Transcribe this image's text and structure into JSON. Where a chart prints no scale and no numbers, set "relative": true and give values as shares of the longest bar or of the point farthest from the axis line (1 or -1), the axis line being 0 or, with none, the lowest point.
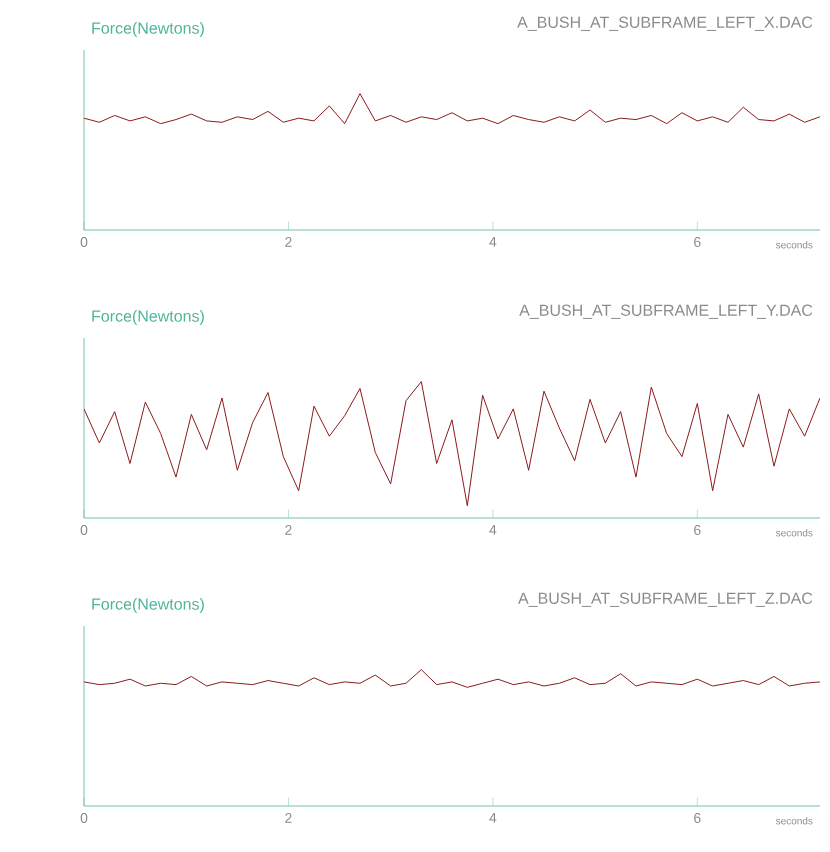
{
  "chart_data": [
    {
      "type": "line",
      "title": "A_BUSH_AT_SUBFRAME_LEFT_X.DAC",
      "ylabel": "Force(Newtons)",
      "xlabel": "seconds",
      "relative": true,
      "xlim": [
        0,
        7.2
      ],
      "xticks": [
        0,
        2,
        4,
        6
      ],
      "x": [
        0,
        0.15,
        0.3,
        0.45,
        0.6,
        0.75,
        0.9,
        1.05,
        1.2,
        1.35,
        1.5,
        1.65,
        1.8,
        1.95,
        2.1,
        2.25,
        2.4,
        2.55,
        2.7,
        2.85,
        3.0,
        3.15,
        3.3,
        3.45,
        3.6,
        3.75,
        3.9,
        4.05,
        4.2,
        4.35,
        4.5,
        4.65,
        4.8,
        4.95,
        5.1,
        5.25,
        5.4,
        5.55,
        5.7,
        5.85,
        6.0,
        6.15,
        6.3,
        6.45,
        6.6,
        6.75,
        6.9,
        7.05,
        7.2
      ],
      "series": [
        {
          "color": "#8b1a1a",
          "values": [
            0.82,
            0.79,
            0.84,
            0.8,
            0.83,
            0.78,
            0.81,
            0.85,
            0.8,
            0.79,
            0.83,
            0.81,
            0.87,
            0.79,
            0.82,
            0.8,
            0.91,
            0.78,
            1.0,
            0.8,
            0.84,
            0.79,
            0.83,
            0.81,
            0.86,
            0.8,
            0.82,
            0.78,
            0.84,
            0.81,
            0.79,
            0.83,
            0.8,
            0.88,
            0.79,
            0.82,
            0.81,
            0.84,
            0.78,
            0.86,
            0.8,
            0.83,
            0.79,
            0.9,
            0.81,
            0.8,
            0.85,
            0.79,
            0.83
          ]
        }
      ]
    },
    {
      "type": "line",
      "title": "A_BUSH_AT_SUBFRAME_LEFT_Y.DAC",
      "ylabel": "Force(Newtons)",
      "xlabel": "seconds",
      "relative": true,
      "xlim": [
        0,
        7.2
      ],
      "xticks": [
        0,
        2,
        4,
        6
      ],
      "x": [
        0,
        0.15,
        0.3,
        0.45,
        0.6,
        0.75,
        0.9,
        1.05,
        1.2,
        1.35,
        1.5,
        1.65,
        1.8,
        1.95,
        2.1,
        2.25,
        2.4,
        2.55,
        2.7,
        2.85,
        3.0,
        3.15,
        3.3,
        3.45,
        3.6,
        3.75,
        3.9,
        4.05,
        4.2,
        4.35,
        4.5,
        4.65,
        4.8,
        4.95,
        5.1,
        5.25,
        5.4,
        5.55,
        5.7,
        5.85,
        6.0,
        6.15,
        6.3,
        6.45,
        6.6,
        6.75,
        6.9,
        7.05,
        7.2
      ],
      "series": [
        {
          "color": "#8b1a1a",
          "values": [
            0.8,
            0.55,
            0.78,
            0.4,
            0.85,
            0.62,
            0.3,
            0.76,
            0.5,
            0.88,
            0.35,
            0.7,
            0.92,
            0.45,
            0.2,
            0.82,
            0.6,
            0.75,
            0.95,
            0.48,
            0.25,
            0.86,
            1.0,
            0.4,
            0.72,
            0.09,
            0.9,
            0.58,
            0.8,
            0.35,
            0.93,
            0.66,
            0.42,
            0.87,
            0.55,
            0.78,
            0.3,
            0.96,
            0.62,
            0.45,
            0.84,
            0.2,
            0.76,
            0.52,
            0.91,
            0.38,
            0.8,
            0.6,
            0.88
          ]
        }
      ]
    },
    {
      "type": "line",
      "title": "A_BUSH_AT_SUBFRAME_LEFT_Z.DAC",
      "ylabel": "Force(Newtons)",
      "xlabel": "seconds",
      "relative": true,
      "xlim": [
        0,
        7.2
      ],
      "xticks": [
        0,
        2,
        4,
        6
      ],
      "x": [
        0,
        0.15,
        0.3,
        0.45,
        0.6,
        0.75,
        0.9,
        1.05,
        1.2,
        1.35,
        1.5,
        1.65,
        1.8,
        1.95,
        2.1,
        2.25,
        2.4,
        2.55,
        2.7,
        2.85,
        3.0,
        3.15,
        3.3,
        3.45,
        3.6,
        3.75,
        3.9,
        4.05,
        4.2,
        4.35,
        4.5,
        4.65,
        4.8,
        4.95,
        5.1,
        5.25,
        5.4,
        5.55,
        5.7,
        5.85,
        6.0,
        6.15,
        6.3,
        6.45,
        6.6,
        6.75,
        6.9,
        7.05,
        7.2
      ],
      "series": [
        {
          "color": "#8b1a1a",
          "values": [
            0.91,
            0.89,
            0.9,
            0.93,
            0.88,
            0.9,
            0.89,
            0.95,
            0.88,
            0.91,
            0.9,
            0.89,
            0.92,
            0.9,
            0.88,
            0.94,
            0.89,
            0.91,
            0.9,
            0.96,
            0.88,
            0.9,
            1.0,
            0.89,
            0.91,
            0.87,
            0.9,
            0.93,
            0.89,
            0.91,
            0.88,
            0.9,
            0.94,
            0.89,
            0.9,
            0.97,
            0.88,
            0.91,
            0.9,
            0.89,
            0.93,
            0.88,
            0.9,
            0.92,
            0.89,
            0.95,
            0.88,
            0.9,
            0.91
          ]
        }
      ]
    }
  ]
}
